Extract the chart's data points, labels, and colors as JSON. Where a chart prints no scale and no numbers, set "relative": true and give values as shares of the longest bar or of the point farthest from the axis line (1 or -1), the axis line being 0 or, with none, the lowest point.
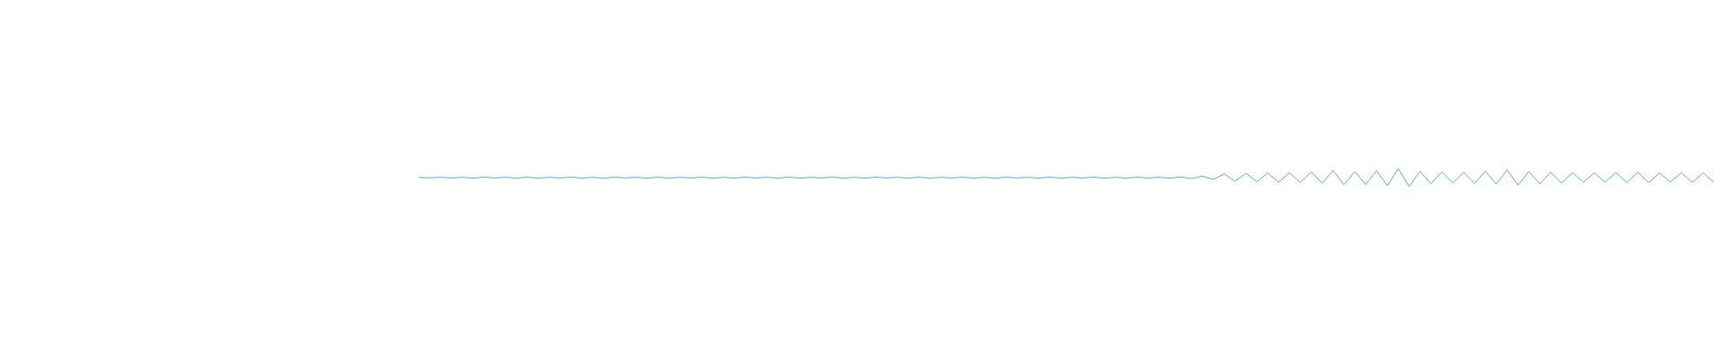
{
  "chart_data": {
    "type": "line",
    "relative": true,
    "categories": [
      null,
      null,
      null,
      null,
      null,
      null,
      null,
      null,
      null,
      null,
      null,
      null,
      null,
      null,
      null,
      null,
      null,
      null,
      null,
      null,
      null,
      null,
      null,
      null,
      null,
      null,
      null,
      null,
      null,
      null,
      null,
      null,
      null,
      null,
      null,
      null,
      null,
      null,
      null,
      null,
      null,
      null,
      null,
      null,
      null,
      null,
      null,
      null,
      null,
      null,
      null,
      null,
      null,
      null,
      null,
      null,
      null,
      null,
      null,
      null,
      null,
      null,
      null,
      null,
      null,
      null,
      null,
      null,
      null,
      null,
      null,
      null,
      null,
      null,
      null,
      null,
      null,
      null,
      null,
      null,
      null,
      null,
      null,
      null,
      null,
      null,
      null,
      null,
      null,
      null,
      null,
      null,
      null,
      null,
      null,
      null,
      null,
      null,
      null,
      null,
      null,
      null,
      null,
      null,
      null,
      null,
      null,
      null,
      null,
      null,
      null,
      null,
      null,
      null,
      null,
      null,
      null,
      null,
      null,
      null
    ],
    "series": [
      {
        "color": "#5aa7e0",
        "values": [
          0.51,
          0.49,
          0.52,
          0.48,
          0.52,
          0.47,
          0.53,
          0.48,
          0.52,
          0.47,
          0.53,
          0.47,
          0.52,
          0.48,
          0.53,
          0.47,
          0.52,
          0.47,
          0.53,
          0.48,
          0.52,
          0.47,
          0.53,
          0.47,
          0.52,
          0.48,
          0.53,
          0.47,
          0.52,
          0.47,
          0.53,
          0.48,
          0.52,
          0.47,
          0.53,
          0.47,
          0.52,
          0.48,
          0.53,
          0.47,
          0.52,
          0.47,
          0.53,
          0.48,
          0.52,
          0.47,
          0.53,
          0.47,
          0.52,
          0.48,
          0.53,
          0.47,
          0.52,
          0.47,
          0.53,
          0.48,
          0.52,
          0.47,
          0.53,
          0.47,
          0.52,
          0.48,
          0.53,
          0.47,
          0.52,
          0.47,
          0.53,
          0.48,
          0.52,
          0.47,
          0.54,
          0.45,
          0.58,
          0.4,
          0.7,
          0.3,
          0.74,
          0.27,
          0.76,
          0.24,
          0.78,
          0.22,
          0.82,
          0.18,
          0.9,
          0.1,
          0.84,
          0.12,
          0.88,
          0.05,
          1,
          0,
          0.86,
          0.16,
          0.82,
          0.2,
          0.8,
          0.18,
          0.86,
          0.14,
          0.92,
          0.08,
          0.84,
          0.15,
          0.8,
          0.2,
          0.78,
          0.24,
          0.76,
          0.24,
          0.78,
          0.22,
          0.8,
          0.22,
          0.76,
          0.25,
          0.78,
          0.23,
          0.77,
          0.24
        ]
      }
    ],
    "grid": false,
    "marker": "none"
  }
}
